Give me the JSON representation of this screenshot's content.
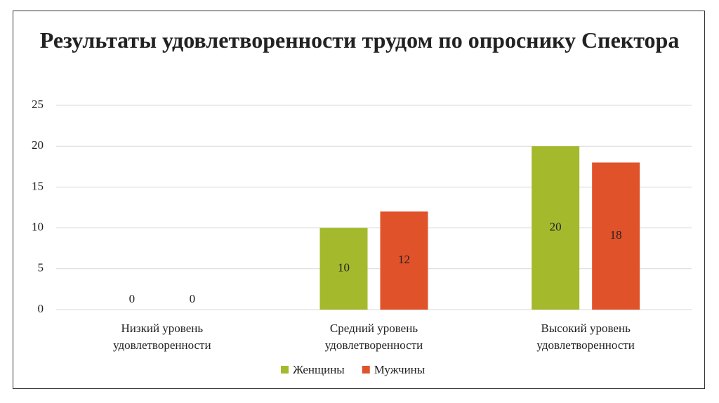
{
  "chart_data": {
    "type": "bar",
    "title": "Результаты удовлетворенности трудом по опроснику Спектора",
    "categories": [
      "Низкий уровень удовлетворенности",
      "Средний уровень удовлетворенности",
      "Высокий уровень удовлетворенности"
    ],
    "series": [
      {
        "name": "Женщины",
        "color": "#a5b92c",
        "values": [
          0,
          10,
          20
        ]
      },
      {
        "name": "Мужчины",
        "color": "#e0522a",
        "values": [
          0,
          12,
          18
        ]
      }
    ],
    "ylim": [
      0,
      25
    ],
    "yticks": [
      0,
      5,
      10,
      15,
      20,
      25
    ],
    "grid": true,
    "legend": "bottom"
  }
}
